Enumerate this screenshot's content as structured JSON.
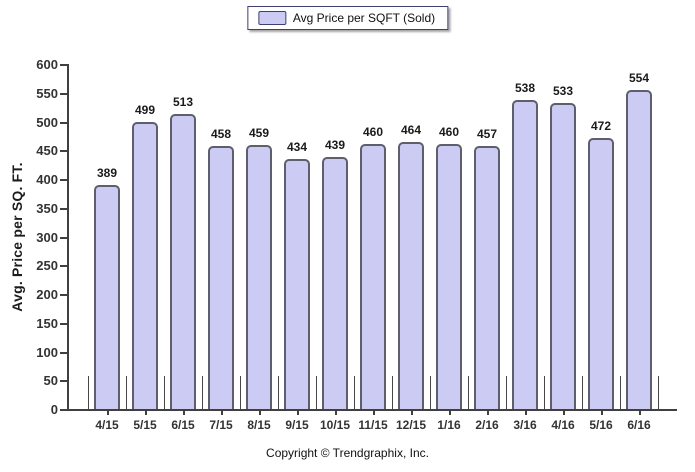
{
  "legend": {
    "label": "Avg Price per SQFT (Sold)"
  },
  "footer": {
    "copyright": "Copyright © Trendgraphix, Inc."
  },
  "chart_data": {
    "type": "bar",
    "title": "",
    "series_name": "Avg Price per SQFT (Sold)",
    "categories": [
      "4/15",
      "5/15",
      "6/15",
      "7/15",
      "8/15",
      "9/15",
      "10/15",
      "11/15",
      "12/15",
      "1/16",
      "2/16",
      "3/16",
      "4/16",
      "5/16",
      "6/16"
    ],
    "values": [
      389,
      499,
      513,
      458,
      459,
      434,
      439,
      460,
      464,
      460,
      457,
      538,
      533,
      472,
      554
    ],
    "xlabel": "",
    "ylabel": "Avg. Price per SQ. FT.",
    "ylim": [
      0,
      600
    ],
    "yticks": [
      0,
      50,
      100,
      150,
      200,
      250,
      300,
      350,
      400,
      450,
      500,
      550,
      600
    ],
    "grid": false,
    "legend_position": "top-center",
    "colors": {
      "bar_fill": "#cccbf3",
      "bar_border": "#5e5e6c",
      "legend_border": "#3f3f74",
      "axis": "#404040",
      "text": "#1a1a1a"
    }
  }
}
